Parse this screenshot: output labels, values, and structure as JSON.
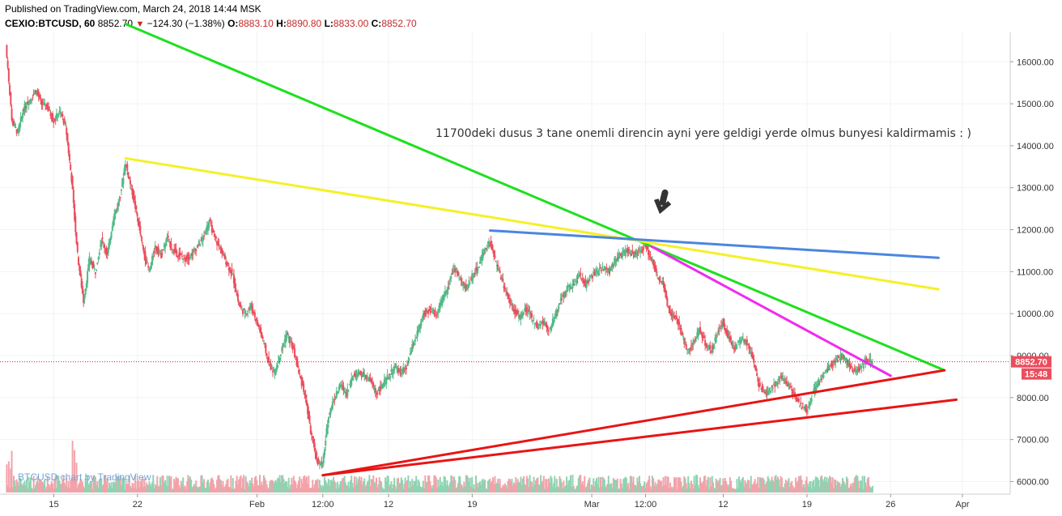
{
  "header": {
    "published": "Published on TradingView.com, March 24, 2018 14:44 MSK",
    "symbol": "CEXIO:BTCUSD, 60",
    "last": "8852.70",
    "change": "−124.30 (−1.38%)",
    "o_label": "O:",
    "o_val": "8883.10",
    "h_label": "H:",
    "h_val": "8890.80",
    "l_label": "L:",
    "l_val": "8833.00",
    "c_label": "C:",
    "c_val": "8852.70"
  },
  "watermark": "BTCUSD chart by TradingView",
  "annotation": "11700deki dusus 3 tane onemli direncin ayni yere geldigi yerde olmus bunyesi kaldirmamis : )",
  "price_tag": {
    "price": "8852.70",
    "countdown": "15:48"
  },
  "chart_data": {
    "type": "line",
    "title": "",
    "y_ticks": [
      6000,
      7000,
      8000,
      9000,
      10000,
      11000,
      12000,
      13000,
      14000,
      15000,
      16000
    ],
    "y_tick_labels": [
      "6000.00",
      "7000.00",
      "8000.00",
      "9000.00",
      "10000.00",
      "11000.00",
      "12000.00",
      "13000.00",
      "14000.00",
      "15000.00",
      "16000.00"
    ],
    "x_tick_labels": [
      "15",
      "22",
      "Feb",
      "12:00",
      "12",
      "19",
      "Mar",
      "12:00",
      "12",
      "19",
      "26",
      "Apr"
    ],
    "x_tick_dates": [
      "2018-01-15",
      "2018-01-22",
      "2018-02-01",
      "2018-02-06 12:00",
      "2018-02-12",
      "2018-02-19",
      "2018-03-01",
      "2018-03-05 12:00",
      "2018-03-12",
      "2018-03-19",
      "2018-03-26",
      "2018-04-01"
    ],
    "price_series": [
      [
        "2018-01-11 00:00",
        16400
      ],
      [
        "2018-01-11 12:00",
        14600
      ],
      [
        "2018-01-12 00:00",
        14300
      ],
      [
        "2018-01-12 12:00",
        14900
      ],
      [
        "2018-01-13 00:00",
        15100
      ],
      [
        "2018-01-13 12:00",
        15300
      ],
      [
        "2018-01-14 00:00",
        15000
      ],
      [
        "2018-01-14 12:00",
        14900
      ],
      [
        "2018-01-15 00:00",
        14600
      ],
      [
        "2018-01-15 12:00",
        14800
      ],
      [
        "2018-01-16 00:00",
        14500
      ],
      [
        "2018-01-16 12:00",
        13200
      ],
      [
        "2018-01-17 00:00",
        11400
      ],
      [
        "2018-01-17 12:00",
        10300
      ],
      [
        "2018-01-18 00:00",
        11300
      ],
      [
        "2018-01-18 12:00",
        11000
      ],
      [
        "2018-01-19 00:00",
        11800
      ],
      [
        "2018-01-19 12:00",
        11400
      ],
      [
        "2018-01-20 00:00",
        12300
      ],
      [
        "2018-01-20 12:00",
        12700
      ],
      [
        "2018-01-21 00:00",
        13600
      ],
      [
        "2018-01-21 12:00",
        13000
      ],
      [
        "2018-01-22 00:00",
        12300
      ],
      [
        "2018-01-22 12:00",
        11500
      ],
      [
        "2018-01-23 00:00",
        11000
      ],
      [
        "2018-01-23 12:00",
        11600
      ],
      [
        "2018-01-24 00:00",
        11400
      ],
      [
        "2018-01-24 12:00",
        11800
      ],
      [
        "2018-01-25 00:00",
        11500
      ],
      [
        "2018-01-25 12:00",
        11400
      ],
      [
        "2018-01-26 00:00",
        11300
      ],
      [
        "2018-01-26 12:00",
        11400
      ],
      [
        "2018-01-27 00:00",
        11600
      ],
      [
        "2018-01-27 12:00",
        11800
      ],
      [
        "2018-01-28 00:00",
        12200
      ],
      [
        "2018-01-28 12:00",
        11800
      ],
      [
        "2018-01-29 00:00",
        11500
      ],
      [
        "2018-01-29 12:00",
        11200
      ],
      [
        "2018-01-30 00:00",
        10900
      ],
      [
        "2018-01-30 12:00",
        10200
      ],
      [
        "2018-01-31 00:00",
        10000
      ],
      [
        "2018-01-31 12:00",
        10200
      ],
      [
        "2018-02-01 00:00",
        9800
      ],
      [
        "2018-02-01 12:00",
        9400
      ],
      [
        "2018-02-02 00:00",
        8800
      ],
      [
        "2018-02-02 12:00",
        8600
      ],
      [
        "2018-02-03 00:00",
        9100
      ],
      [
        "2018-02-03 12:00",
        9500
      ],
      [
        "2018-02-04 00:00",
        9200
      ],
      [
        "2018-02-04 12:00",
        8600
      ],
      [
        "2018-02-05 00:00",
        8100
      ],
      [
        "2018-02-05 12:00",
        7200
      ],
      [
        "2018-02-06 00:00",
        6500
      ],
      [
        "2018-02-06 12:00",
        6400
      ],
      [
        "2018-02-07 00:00",
        7600
      ],
      [
        "2018-02-07 12:00",
        8000
      ],
      [
        "2018-02-08 00:00",
        8300
      ],
      [
        "2018-02-08 12:00",
        8100
      ],
      [
        "2018-02-09 00:00",
        8500
      ],
      [
        "2018-02-09 12:00",
        8600
      ],
      [
        "2018-02-10 00:00",
        8500
      ],
      [
        "2018-02-10 12:00",
        8400
      ],
      [
        "2018-02-11 00:00",
        8100
      ],
      [
        "2018-02-11 12:00",
        8300
      ],
      [
        "2018-02-12 00:00",
        8500
      ],
      [
        "2018-02-12 12:00",
        8700
      ],
      [
        "2018-02-13 00:00",
        8600
      ],
      [
        "2018-02-13 12:00",
        8700
      ],
      [
        "2018-02-14 00:00",
        9200
      ],
      [
        "2018-02-14 12:00",
        9600
      ],
      [
        "2018-02-15 00:00",
        10000
      ],
      [
        "2018-02-15 12:00",
        10100
      ],
      [
        "2018-02-16 00:00",
        10000
      ],
      [
        "2018-02-16 12:00",
        10300
      ],
      [
        "2018-02-17 00:00",
        10700
      ],
      [
        "2018-02-17 12:00",
        11100
      ],
      [
        "2018-02-18 00:00",
        10800
      ],
      [
        "2018-02-18 12:00",
        10600
      ],
      [
        "2018-02-19 00:00",
        10900
      ],
      [
        "2018-02-19 12:00",
        11100
      ],
      [
        "2018-02-20 00:00",
        11500
      ],
      [
        "2018-02-20 12:00",
        11700
      ],
      [
        "2018-02-21 00:00",
        11200
      ],
      [
        "2018-02-21 12:00",
        10800
      ],
      [
        "2018-02-22 00:00",
        10400
      ],
      [
        "2018-02-22 12:00",
        10100
      ],
      [
        "2018-02-23 00:00",
        9900
      ],
      [
        "2018-02-23 12:00",
        10100
      ],
      [
        "2018-02-24 00:00",
        9900
      ],
      [
        "2018-02-24 12:00",
        9700
      ],
      [
        "2018-02-25 00:00",
        9800
      ],
      [
        "2018-02-25 12:00",
        9600
      ],
      [
        "2018-02-26 00:00",
        10000
      ],
      [
        "2018-02-26 12:00",
        10400
      ],
      [
        "2018-02-27 00:00",
        10600
      ],
      [
        "2018-02-27 12:00",
        10700
      ],
      [
        "2018-02-28 00:00",
        10900
      ],
      [
        "2018-02-28 12:00",
        10700
      ],
      [
        "2018-03-01 00:00",
        10900
      ],
      [
        "2018-03-01 12:00",
        11000
      ],
      [
        "2018-03-02 00:00",
        11100
      ],
      [
        "2018-03-02 12:00",
        11000
      ],
      [
        "2018-03-03 00:00",
        11300
      ],
      [
        "2018-03-03 12:00",
        11400
      ],
      [
        "2018-03-04 00:00",
        11500
      ],
      [
        "2018-03-04 12:00",
        11400
      ],
      [
        "2018-03-05 00:00",
        11500
      ],
      [
        "2018-03-05 12:00",
        11600
      ],
      [
        "2018-03-06 00:00",
        11300
      ],
      [
        "2018-03-06 12:00",
        10900
      ],
      [
        "2018-03-07 00:00",
        10700
      ],
      [
        "2018-03-07 12:00",
        10000
      ],
      [
        "2018-03-08 00:00",
        9900
      ],
      [
        "2018-03-08 12:00",
        9600
      ],
      [
        "2018-03-09 00:00",
        9100
      ],
      [
        "2018-03-09 12:00",
        9300
      ],
      [
        "2018-03-10 00:00",
        9600
      ],
      [
        "2018-03-10 12:00",
        9300
      ],
      [
        "2018-03-11 00:00",
        9100
      ],
      [
        "2018-03-11 12:00",
        9500
      ],
      [
        "2018-03-12 00:00",
        9800
      ],
      [
        "2018-03-12 12:00",
        9400
      ],
      [
        "2018-03-13 00:00",
        9200
      ],
      [
        "2018-03-13 12:00",
        9400
      ],
      [
        "2018-03-14 00:00",
        9300
      ],
      [
        "2018-03-14 12:00",
        8900
      ],
      [
        "2018-03-15 00:00",
        8300
      ],
      [
        "2018-03-15 12:00",
        8100
      ],
      [
        "2018-03-16 00:00",
        8200
      ],
      [
        "2018-03-16 12:00",
        8400
      ],
      [
        "2018-03-17 00:00",
        8500
      ],
      [
        "2018-03-17 12:00",
        8300
      ],
      [
        "2018-03-18 00:00",
        8000
      ],
      [
        "2018-03-18 12:00",
        7800
      ],
      [
        "2018-03-19 00:00",
        7700
      ],
      [
        "2018-03-19 12:00",
        8100
      ],
      [
        "2018-03-20 00:00",
        8400
      ],
      [
        "2018-03-20 12:00",
        8600
      ],
      [
        "2018-03-21 00:00",
        8800
      ],
      [
        "2018-03-21 12:00",
        8900
      ],
      [
        "2018-03-22 00:00",
        9000
      ],
      [
        "2018-03-22 12:00",
        8800
      ],
      [
        "2018-03-23 00:00",
        8600
      ],
      [
        "2018-03-23 12:00",
        8700
      ],
      [
        "2018-03-24 00:00",
        8900
      ],
      [
        "2018-03-24 12:00",
        8852.7
      ]
    ],
    "trendlines": [
      {
        "color": "#1ee01e",
        "from": [
          "2018-01-21 00:00",
          16900
        ],
        "to": [
          "2018-03-30 12:00",
          8650
        ]
      },
      {
        "color": "#f5f029",
        "from": [
          "2018-01-21 00:00",
          13700
        ],
        "to": [
          "2018-03-30 00:00",
          10580
        ]
      },
      {
        "color": "#4a86e0",
        "from": [
          "2018-02-20 12:00",
          11980
        ],
        "to": [
          "2018-03-30 00:00",
          11330
        ]
      },
      {
        "color": "#f02bf0",
        "from": [
          "2018-03-06 00:00",
          11600
        ],
        "to": [
          "2018-03-26 00:00",
          8520
        ]
      },
      {
        "color": "#e81414",
        "from": [
          "2018-02-06 12:00",
          6150
        ],
        "to": [
          "2018-03-30 12:00",
          8650
        ]
      },
      {
        "color": "#e81414",
        "from": [
          "2018-02-06 12:00",
          6150
        ],
        "to": [
          "2018-03-31 12:00",
          7950
        ]
      }
    ],
    "last_price": 8852.7,
    "xlabel": "",
    "ylabel": "",
    "ylim": [
      5700,
      16700
    ],
    "xlim": [
      "2018-01-10 12:00",
      "2018-04-05 00:00"
    ],
    "grid": true,
    "colors": {
      "up": "#53b987",
      "down": "#eb4d5c",
      "tag": "#eb4d5c",
      "volume_up": "#8fd3b2",
      "volume_down": "#f2a3aa"
    }
  }
}
